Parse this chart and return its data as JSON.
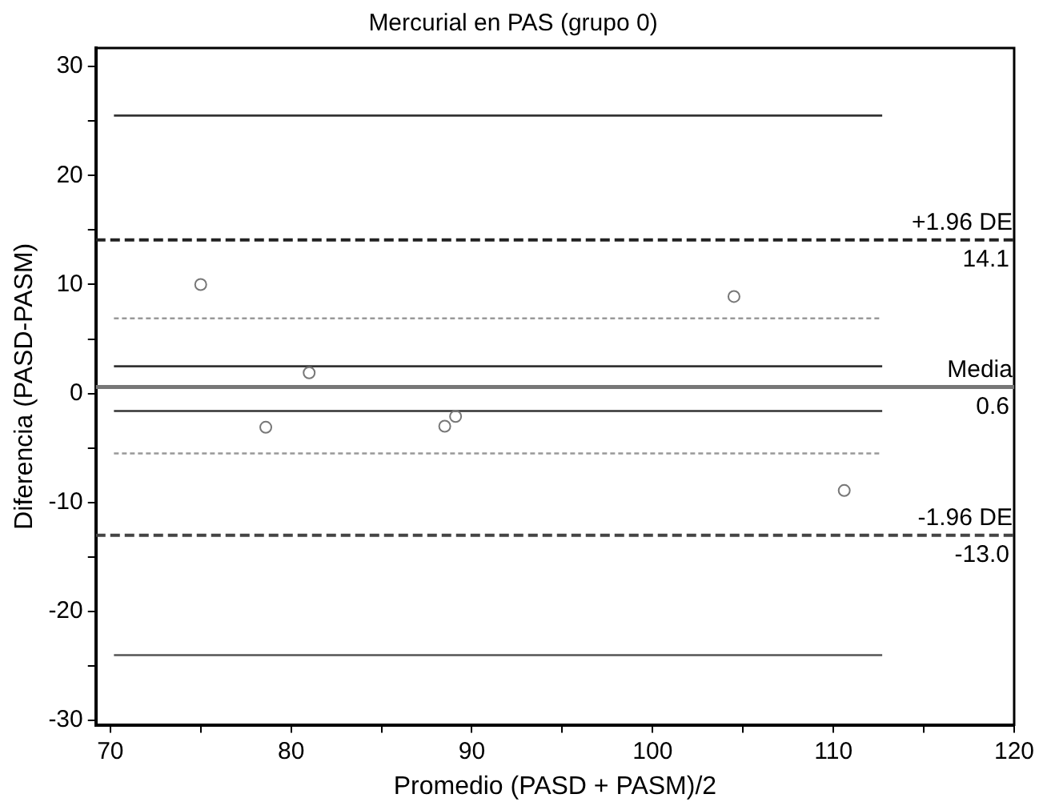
{
  "chart_data": {
    "type": "scatter",
    "title": "Mercurial en PAS (grupo 0)",
    "xlabel": "Promedio (PASD + PASM)/2",
    "ylabel": "Diferencia (PASD-PASM)",
    "xlim": [
      69.2,
      120
    ],
    "xticks": [
      70,
      {
        "value": 75,
        "label": null
      },
      80,
      {
        "value": 85,
        "label": null
      },
      90,
      {
        "value": 95,
        "label": null
      },
      100,
      {
        "value": 105,
        "label": null
      },
      110,
      {
        "value": 115,
        "label": null
      },
      120
    ],
    "ylim": [
      -30.4,
      31.7
    ],
    "yticks": [
      -30,
      {
        "value": -25,
        "label": null
      },
      -20,
      {
        "value": -15,
        "label": null
      },
      -10,
      {
        "value": -5,
        "label": null
      },
      0,
      {
        "value": 5,
        "label": null
      },
      10,
      {
        "value": 15,
        "label": null
      },
      20,
      {
        "value": 25,
        "label": null
      },
      30
    ],
    "grid": false,
    "legend": false,
    "series": [
      {
        "type": "scatter",
        "x": [
          75.0,
          78.6,
          81.0,
          88.5,
          89.1,
          104.5,
          110.6
        ],
        "values": [
          10,
          -3.1,
          1.9,
          -3,
          -2.1,
          8.9,
          -8.9
        ],
        "color": "#777777",
        "marker": "circle"
      },
      {
        "type": "line",
        "x": [
          70.2,
          112.7
        ],
        "values": [
          25.5,
          25.5
        ],
        "color": "#333333",
        "line_style": "solid",
        "marker": "none"
      },
      {
        "type": "line",
        "x": [
          70.2,
          112.7
        ],
        "values": [
          6.9,
          6.9
        ],
        "color": "#999999",
        "line_style": "dotted",
        "marker": "none"
      },
      {
        "type": "line",
        "x": [
          70.2,
          112.7
        ],
        "values": [
          2.5,
          2.5
        ],
        "color": "#333333",
        "line_style": "solid",
        "marker": "none"
      },
      {
        "type": "line",
        "x": [
          70.2,
          112.7
        ],
        "values": [
          -1.6,
          -1.6
        ],
        "color": "#333333",
        "line_style": "solid",
        "marker": "none"
      },
      {
        "type": "line",
        "x": [
          70.2,
          112.7
        ],
        "values": [
          -5.5,
          -5.5
        ],
        "color": "#999999",
        "line_style": "dotted",
        "marker": "none"
      },
      {
        "type": "line",
        "x": [
          70.2,
          112.7
        ],
        "values": [
          -24,
          -24
        ],
        "color": "#555555",
        "line_style": "solid",
        "marker": "none"
      }
    ],
    "ref_lines": [
      {
        "axis": "y",
        "value": 14.1,
        "label": "+1.96 DE",
        "color": "#222222",
        "line_style": "dashed"
      },
      {
        "axis": "y",
        "value": 0.6,
        "label": "Media",
        "color": "#777777",
        "line_style": "solid"
      },
      {
        "axis": "y",
        "value": -13,
        "label": "-1.96 DE",
        "color": "#444444",
        "line_style": "dashed"
      }
    ],
    "annotations": [
      {
        "text": "14.1",
        "y": 14.1
      },
      {
        "text": "0.6",
        "y": 0.6
      },
      {
        "text": "-13.0",
        "y": -13
      }
    ]
  }
}
